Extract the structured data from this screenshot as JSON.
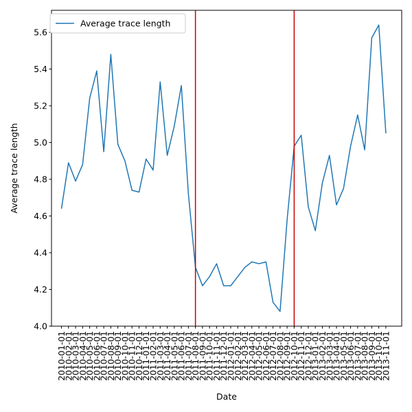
{
  "chart_data": {
    "type": "line",
    "title": "",
    "xlabel": "Date",
    "ylabel": "Average trace length",
    "ylim": [
      4.0,
      5.72
    ],
    "yticks": [
      4.0,
      4.2,
      4.4,
      4.6,
      4.8,
      5.0,
      5.2,
      5.4,
      5.6
    ],
    "ytick_labels": [
      "4.0",
      "4.2",
      "4.4",
      "4.6",
      "4.8",
      "5.0",
      "5.2",
      "5.4",
      "5.6"
    ],
    "legend": {
      "position": "upper-left",
      "entries": [
        "Average trace length"
      ]
    },
    "colors": {
      "line": "#1f77b4",
      "vline": "#d62728",
      "vline_exact": "#cc0000"
    },
    "vlines": [
      "2011-08-01",
      "2012-10-01"
    ],
    "series": [
      {
        "name": "Average trace length",
        "x": [
          "2010-01-01",
          "2010-02-01",
          "2010-03-01",
          "2010-04-01",
          "2010-05-01",
          "2010-06-01",
          "2010-07-01",
          "2010-08-01",
          "2010-09-01",
          "2010-10-01",
          "2010-11-01",
          "2010-12-01",
          "2011-01-01",
          "2011-02-01",
          "2011-03-01",
          "2011-04-01",
          "2011-05-01",
          "2011-06-01",
          "2011-07-01",
          "2011-08-01",
          "2011-09-01",
          "2011-10-01",
          "2011-11-01",
          "2011-12-01",
          "2012-01-01",
          "2012-02-01",
          "2012-03-01",
          "2012-04-01",
          "2012-05-01",
          "2012-06-01",
          "2012-07-01",
          "2012-08-01",
          "2012-09-01",
          "2012-10-01",
          "2012-11-01",
          "2012-12-01",
          "2013-01-01",
          "2013-02-01",
          "2013-03-01",
          "2013-04-01",
          "2013-05-01",
          "2013-06-01",
          "2013-07-01",
          "2013-08-01",
          "2013-09-01",
          "2013-10-01",
          "2013-11-01"
        ],
        "values": [
          4.64,
          4.89,
          4.79,
          4.88,
          5.24,
          5.39,
          4.95,
          5.48,
          4.99,
          4.9,
          4.74,
          4.73,
          4.91,
          4.85,
          5.33,
          4.93,
          5.09,
          5.31,
          4.72,
          4.32,
          4.22,
          4.27,
          4.34,
          4.22,
          4.22,
          4.27,
          4.32,
          4.35,
          4.34,
          4.35,
          4.13,
          4.08,
          4.58,
          4.98,
          5.04,
          4.65,
          4.52,
          4.78,
          4.93,
          4.66,
          4.75,
          4.98,
          5.15,
          4.96,
          5.57,
          5.64,
          5.05
        ]
      }
    ],
    "x_tick_labels": [
      "2010-01-01",
      "2010-02-01",
      "2010-03-01",
      "2010-04-01",
      "2010-05-01",
      "2010-06-01",
      "2010-07-01",
      "2010-08-01",
      "2010-09-01",
      "2010-10-01",
      "2010-11-01",
      "2010-12-01",
      "2011-01-01",
      "2011-02-01",
      "2011-03-01",
      "2011-04-01",
      "2011-05-01",
      "2011-06-01",
      "2011-07-01",
      "2011-08-01",
      "2011-09-01",
      "2011-10-01",
      "2011-11-01",
      "2011-12-01",
      "2012-01-01",
      "2012-02-01",
      "2012-03-01",
      "2012-04-01",
      "2012-05-01",
      "2012-06-01",
      "2012-07-01",
      "2012-08-01",
      "2012-09-01",
      "2012-10-01",
      "2012-11-01",
      "2012-12-01",
      "2013-01-01",
      "2013-02-01",
      "2013-03-01",
      "2013-04-01",
      "2013-05-01",
      "2013-06-01",
      "2013-07-01",
      "2013-08-01",
      "2013-09-01",
      "2013-10-01",
      "2013-11-01"
    ]
  }
}
